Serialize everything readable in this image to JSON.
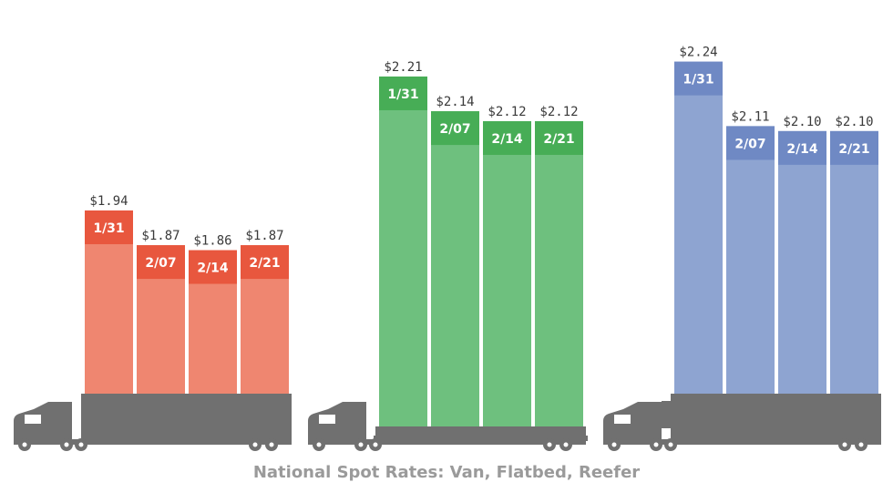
{
  "chart_data": [
    {
      "type": "bar",
      "categories": [
        "1/31",
        "2/07",
        "2/14",
        "2/21"
      ],
      "values": [
        1.94,
        1.87,
        1.86,
        1.87
      ],
      "value_labels": [
        "$1.94",
        "$1.87",
        "$1.86",
        "$1.87"
      ],
      "colors": {
        "body": "#ef8670",
        "cap": "#e8573e"
      },
      "trailer_icon": "semi-truck-van-icon"
    },
    {
      "type": "bar",
      "categories": [
        "1/31",
        "2/07",
        "2/14",
        "2/21"
      ],
      "values": [
        2.21,
        2.14,
        2.12,
        2.12
      ],
      "value_labels": [
        "$2.21",
        "$2.14",
        "$2.12",
        "$2.12"
      ],
      "colors": {
        "body": "#6ec07e",
        "cap": "#47ad56"
      },
      "trailer_icon": "semi-truck-flatbed-icon"
    },
    {
      "type": "bar",
      "categories": [
        "1/31",
        "2/07",
        "2/14",
        "2/21"
      ],
      "values": [
        2.24,
        2.11,
        2.1,
        2.1
      ],
      "value_labels": [
        "$2.24",
        "$2.11",
        "$2.10",
        "$2.10"
      ],
      "colors": {
        "body": "#8ea4d1",
        "cap": "#6f89c4"
      },
      "trailer_icon": "semi-truck-reefer-icon"
    }
  ],
  "caption": "National Spot Rates: Van, Flatbed, Reefer"
}
